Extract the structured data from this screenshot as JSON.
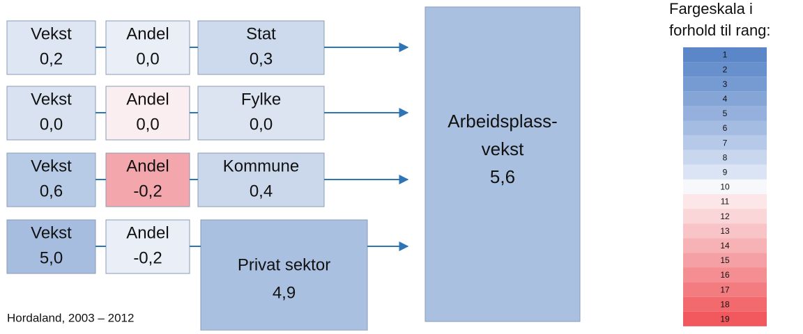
{
  "rows": [
    {
      "boxes": [
        {
          "label": "Vekst",
          "value": "0,2",
          "color": "#dfe6f3"
        },
        {
          "label": "Andel",
          "value": "0,0",
          "color": "#e9eef7"
        },
        {
          "label": "Stat",
          "value": "0,3",
          "color": "#cdd9ec"
        }
      ]
    },
    {
      "boxes": [
        {
          "label": "Vekst",
          "value": "0,0",
          "color": "#d9e2f1"
        },
        {
          "label": "Andel",
          "value": "0,0",
          "color": "#fbeef1"
        },
        {
          "label": "Fylke",
          "value": "0,0",
          "color": "#dce4f2"
        }
      ]
    },
    {
      "boxes": [
        {
          "label": "Vekst",
          "value": "0,6",
          "color": "#b8cbe6"
        },
        {
          "label": "Andel",
          "value": "-0,2",
          "color": "#f4a6ad"
        },
        {
          "label": "Kommune",
          "value": "0,4",
          "color": "#cbd7eb"
        }
      ]
    },
    {
      "boxes": [
        {
          "label": "Vekst",
          "value": "5,0",
          "color": "#a6bde0"
        },
        {
          "label": "Andel",
          "value": "-0,2",
          "color": "#e9eef7"
        },
        {
          "label": "Privat sektor",
          "value": "4,9",
          "color": "#a9c0e0"
        }
      ]
    }
  ],
  "result": {
    "label_line1": "Arbeidsplass-",
    "label_line2": "vekst",
    "value": "5,6",
    "color": "#a9c0e0"
  },
  "legend": {
    "title_line1": "Fargeskala i",
    "title_line2": "forhold til rang:",
    "scale": [
      "1",
      "2",
      "3",
      "4",
      "5",
      "6",
      "7",
      "8",
      "9",
      "10",
      "11",
      "12",
      "13",
      "14",
      "15",
      "16",
      "17",
      "18",
      "19"
    ],
    "colors": [
      "#5b86c8",
      "#6890cd",
      "#769ad2",
      "#85a5d7",
      "#95b0dc",
      "#a5bce2",
      "#b6c9e8",
      "#c8d6ee",
      "#dbe4f4",
      "#f7f8fc",
      "#fde6e8",
      "#fbd6d9",
      "#f9c4c8",
      "#f7b2b6",
      "#f5a0a4",
      "#f48e92",
      "#f37c80",
      "#f26a6e",
      "#f2595e"
    ]
  },
  "footnote": "Hordaland, 2003 – 2012"
}
